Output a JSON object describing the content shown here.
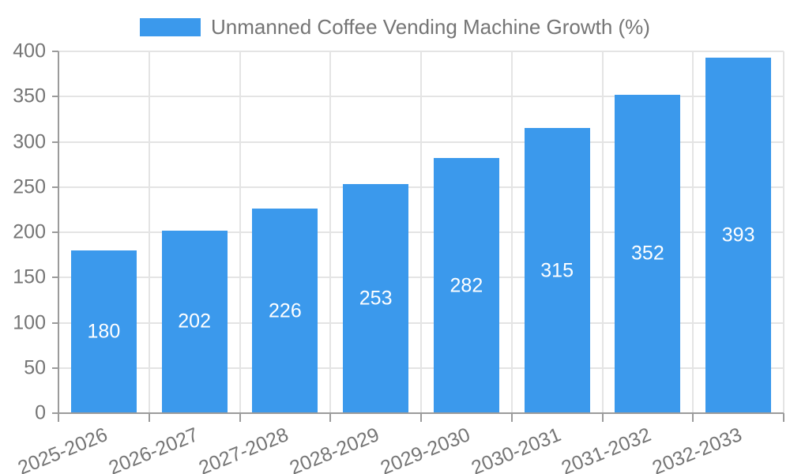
{
  "chart_data": {
    "type": "bar",
    "title": "Unmanned Coffee Vending Machine Growth (%)",
    "legend": [
      "Unmanned Coffee Vending Machine Growth (%)"
    ],
    "legend_position": "top-center",
    "categories": [
      "2025-2026",
      "2026-2027",
      "2027-2028",
      "2028-2029",
      "2029-2030",
      "2030-2031",
      "2031-2032",
      "2032-2033"
    ],
    "values": [
      180,
      202,
      226,
      253,
      282,
      315,
      352,
      393
    ],
    "value_labels_shown_inside_bars": true,
    "xlabel": "",
    "ylabel": "",
    "ylim": [
      0,
      400
    ],
    "ytick_step": 50,
    "ytick_labels": [
      "0",
      "50",
      "100",
      "150",
      "200",
      "250",
      "300",
      "350",
      "400"
    ],
    "grid": true,
    "x_label_rotation_deg": -22,
    "colors": {
      "bar": "#3b99ec",
      "axis_line": "#9b9b9b",
      "gridline": "#e4e4e4",
      "tick_label": "#757575",
      "value_label": "#ffffff",
      "background": "#ffffff"
    }
  }
}
